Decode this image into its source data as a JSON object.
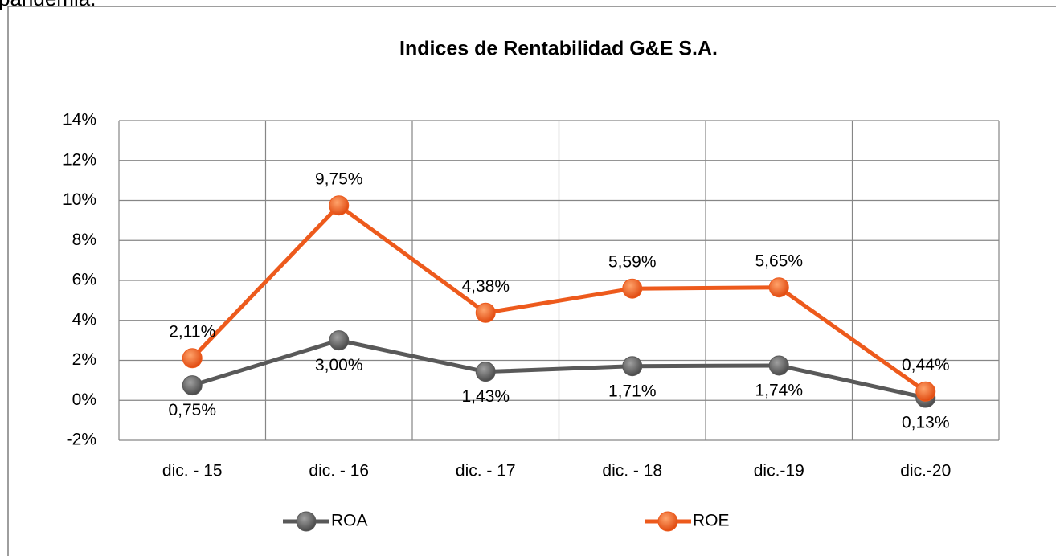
{
  "header": {
    "text": "pandemia."
  },
  "chart_data": {
    "type": "line",
    "title": "Indices de Rentabilidad G&E S.A.",
    "categories": [
      "dic. - 15",
      "dic. - 16",
      "dic. - 17",
      "dic. - 18",
      "dic.-19",
      "dic.-20"
    ],
    "series": [
      {
        "name": "ROA",
        "color": "#595959",
        "label_color": "#000000",
        "label_position": "below",
        "values": [
          0.75,
          3.0,
          1.43,
          1.71,
          1.74,
          0.13
        ],
        "value_labels": [
          "0,75%",
          "3,00%",
          "1,43%",
          "1,71%",
          "1,74%",
          "0,13%"
        ]
      },
      {
        "name": "ROE",
        "color": "#ed5a1c",
        "label_color": "#c55a11",
        "label_position": "above",
        "values": [
          2.11,
          9.75,
          4.38,
          5.59,
          5.65,
          0.44
        ],
        "value_labels": [
          "2,11%",
          "9,75%",
          "4,38%",
          "5,59%",
          "5,65%",
          "0,44%"
        ]
      }
    ],
    "ylim": [
      -2,
      14
    ],
    "yticks": [
      {
        "value": -2,
        "label": "-2%"
      },
      {
        "value": 0,
        "label": "0%"
      },
      {
        "value": 2,
        "label": "2%"
      },
      {
        "value": 4,
        "label": "4%"
      },
      {
        "value": 6,
        "label": "6%"
      },
      {
        "value": 8,
        "label": "8%"
      },
      {
        "value": 10,
        "label": "10%"
      },
      {
        "value": 12,
        "label": "12%"
      },
      {
        "value": 14,
        "label": "14%"
      }
    ],
    "grid": true,
    "legend": "bottom"
  }
}
